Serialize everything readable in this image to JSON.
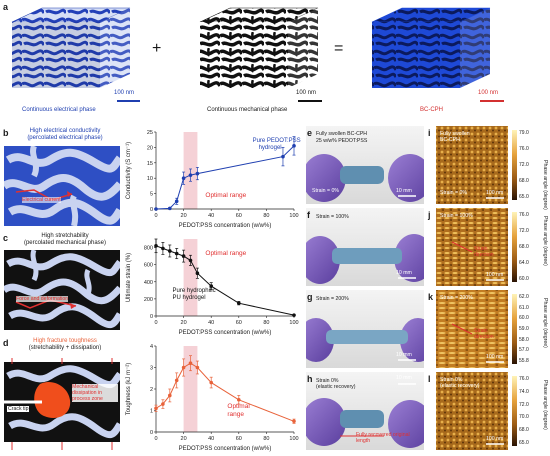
{
  "panels": {
    "a": {
      "label": "a",
      "cube1_caption": "Continuous electrical phase",
      "cube2_caption": "Continuous mechanical phase",
      "cube3_caption": "BC-CPH",
      "plus": "+",
      "equals": "=",
      "scalebar": "100 nm",
      "colors": {
        "electrical": "#1f3fb0",
        "mechanical": "#111111",
        "bccph_caption": "#d33030"
      }
    },
    "b": {
      "label": "b",
      "title_line1": "High electrical conductivity",
      "title_line2": "(percolated electrical phase)",
      "annotation": "Electrical current"
    },
    "c": {
      "label": "c",
      "title_line1": "High stretchability",
      "title_line2": "(percolated mechanical phase)",
      "annotation": "Force and deformation"
    },
    "d": {
      "label": "d",
      "title_line1": "High fracture toughness",
      "title_line2": "(stretchability + dissipation)",
      "crack_label": "Crack tip",
      "dissipation_label": "Mechanical dissipation in process zone"
    },
    "e": {
      "label": "e",
      "caption_line1": "Fully swollen BC-CPH",
      "caption_line2": "25 w/w% PEDOT:PSS",
      "strain": "Strain = 0%",
      "scalebar": "10 mm"
    },
    "f": {
      "label": "f",
      "strain": "Strain = 100%",
      "scalebar": "10 mm"
    },
    "g": {
      "label": "g",
      "strain": "Strain = 200%",
      "scalebar": "10 mm"
    },
    "h": {
      "label": "h",
      "strain_line1": "Strain 0%",
      "strain_line2": "(elastic recovery)",
      "recover_label": "Fully recovered original length",
      "scalebar": "10 mm"
    },
    "i": {
      "label": "i",
      "caption_line1": "Fully swollen",
      "caption_line2": "BC-CPH",
      "strain": "Strain = 0%",
      "scalebar": "100 nm",
      "axis_label": "Phase angle (degree)",
      "ticks": [
        "79.0",
        "76.0",
        "72.0",
        "68.0",
        "65.0"
      ]
    },
    "j": {
      "label": "j",
      "strain": "Strain = 100%",
      "direction": "Strain direction",
      "scalebar": "100 nm",
      "axis_label": "Phase angle (degree)",
      "ticks": [
        "76.0",
        "72.0",
        "68.0",
        "64.0",
        "60.0"
      ]
    },
    "k": {
      "label": "k",
      "strain": "Strain = 200%",
      "direction": "Strain direction",
      "scalebar": "100 nm",
      "axis_label": "Phase angle (degree)",
      "ticks": [
        "62.0",
        "61.0",
        "60.0",
        "59.0",
        "58.0",
        "57.0",
        "55.8"
      ]
    },
    "l": {
      "label": "l",
      "strain_line1": "Strain 0%",
      "strain_line2": "(elastic recovery)",
      "scalebar": "100 nm",
      "axis_label": "Phase angle (degree)",
      "ticks": [
        "76.0",
        "74.0",
        "72.0",
        "70.0",
        "68.0",
        "65.0"
      ]
    }
  },
  "chart_data": [
    {
      "type": "line",
      "xlabel": "PEDOT:PSS concentration (w/w%)",
      "ylabel": "Conductivity (S cm⁻¹)",
      "xlim": [
        0,
        100
      ],
      "ylim": [
        0,
        25
      ],
      "xticks": [
        "0",
        "20",
        "40",
        "60",
        "80",
        "100"
      ],
      "yticks": [
        "0",
        "5",
        "10",
        "15",
        "20",
        "25"
      ],
      "optimal_range": [
        20,
        30
      ],
      "optimal_label": "Optimal range",
      "annotation_line1": "Pure PEDOT:PSS",
      "annotation_line2": "hydrogel",
      "color": "#1f3fb0",
      "x": [
        0,
        10,
        15,
        20,
        25,
        30,
        92,
        100
      ],
      "y": [
        0,
        0.2,
        2.5,
        10,
        11,
        11.5,
        17,
        20.5
      ],
      "err": [
        0,
        0.3,
        1,
        2,
        2,
        2,
        3,
        3
      ]
    },
    {
      "type": "line",
      "xlabel": "PEDOT:PSS concentration (w/w%)",
      "ylabel": "Ultimate strain (%)",
      "xlim": [
        0,
        100
      ],
      "ylim": [
        0,
        900
      ],
      "xticks": [
        "0",
        "20",
        "40",
        "60",
        "80",
        "100"
      ],
      "yticks": [
        "0",
        "200",
        "400",
        "600",
        "800"
      ],
      "optimal_range": [
        20,
        30
      ],
      "optimal_label": "Optimal range",
      "annotation_line1": "Pure hydrophilic",
      "annotation_line2": "PU hydrogel",
      "color": "#111111",
      "x": [
        0,
        5,
        10,
        15,
        20,
        25,
        30,
        40,
        60,
        100
      ],
      "y": [
        820,
        790,
        760,
        730,
        700,
        650,
        500,
        350,
        150,
        10
      ],
      "err": [
        80,
        70,
        70,
        60,
        70,
        60,
        60,
        40,
        20,
        5
      ]
    },
    {
      "type": "line",
      "xlabel": "PEDOT:PSS concentration (w/w%)",
      "ylabel": "Toughness (kJ m⁻²)",
      "xlim": [
        0,
        100
      ],
      "ylim": [
        0,
        4
      ],
      "xticks": [
        "0",
        "20",
        "40",
        "60",
        "80",
        "100"
      ],
      "yticks": [
        "0",
        "1",
        "2",
        "3",
        "4"
      ],
      "optimal_range": [
        20,
        30
      ],
      "optimal_label_line1": "Optimal",
      "optimal_label_line2": "range",
      "color": "#e8623a",
      "x": [
        0,
        5,
        10,
        15,
        20,
        25,
        30,
        40,
        60,
        100
      ],
      "y": [
        1.1,
        1.3,
        1.7,
        2.4,
        3.0,
        3.2,
        3.0,
        2.3,
        1.5,
        0.5
      ],
      "err": [
        0.15,
        0.2,
        0.3,
        0.35,
        0.4,
        0.35,
        0.3,
        0.25,
        0.2,
        0.1
      ]
    }
  ]
}
